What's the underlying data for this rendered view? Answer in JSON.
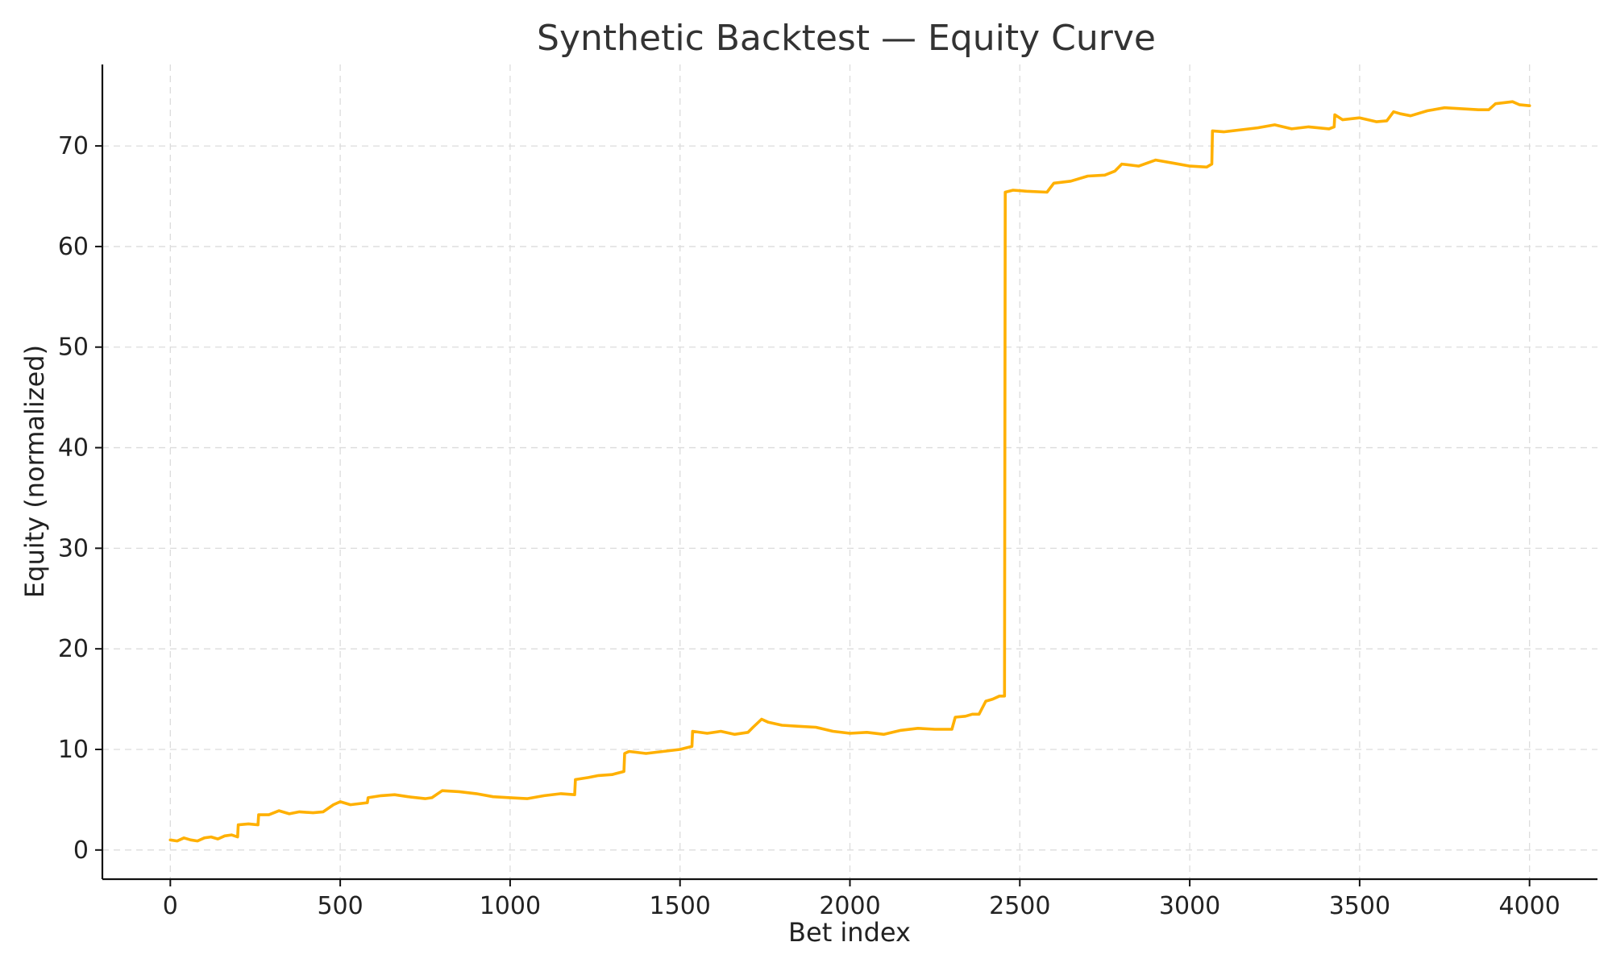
{
  "chart_data": {
    "type": "line",
    "title": "Synthetic Backtest — Equity Curve",
    "xlabel": "Bet index",
    "ylabel": "Equity (normalized)",
    "xlim": [
      -200,
      4200
    ],
    "ylim": [
      -2.9,
      78.1
    ],
    "xticks": [
      0,
      500,
      1000,
      1500,
      2000,
      2500,
      3000,
      3500,
      4000
    ],
    "yticks": [
      0,
      10,
      20,
      30,
      40,
      50,
      60,
      70
    ],
    "grid": true,
    "series": [
      {
        "color": "#FFB000",
        "x": [
          0,
          20,
          40,
          60,
          80,
          100,
          120,
          140,
          160,
          180,
          198,
          200,
          230,
          258,
          260,
          290,
          320,
          350,
          380,
          420,
          450,
          480,
          500,
          530,
          580,
          582,
          620,
          660,
          700,
          750,
          770,
          800,
          850,
          900,
          950,
          1000,
          1050,
          1100,
          1150,
          1190,
          1192,
          1230,
          1260,
          1300,
          1335,
          1337,
          1350,
          1400,
          1450,
          1500,
          1535,
          1537,
          1580,
          1620,
          1660,
          1700,
          1715,
          1740,
          1760,
          1800,
          1850,
          1900,
          1950,
          2000,
          2050,
          2100,
          2150,
          2200,
          2250,
          2300,
          2310,
          2340,
          2360,
          2380,
          2400,
          2420,
          2440,
          2455,
          2457,
          2480,
          2520,
          2580,
          2600,
          2650,
          2700,
          2750,
          2780,
          2800,
          2850,
          2900,
          2950,
          3000,
          3050,
          3065,
          3067,
          3100,
          3150,
          3200,
          3250,
          3300,
          3350,
          3410,
          3425,
          3427,
          3450,
          3500,
          3550,
          3580,
          3600,
          3620,
          3650,
          3700,
          3750,
          3800,
          3850,
          3880,
          3900,
          3950,
          3970,
          4000
        ],
        "y": [
          1.0,
          0.9,
          1.2,
          1.0,
          0.9,
          1.2,
          1.3,
          1.1,
          1.4,
          1.5,
          1.3,
          2.5,
          2.6,
          2.5,
          3.5,
          3.5,
          3.9,
          3.6,
          3.8,
          3.7,
          3.8,
          4.5,
          4.8,
          4.5,
          4.7,
          5.2,
          5.4,
          5.5,
          5.3,
          5.1,
          5.2,
          5.9,
          5.8,
          5.6,
          5.3,
          5.2,
          5.1,
          5.4,
          5.6,
          5.5,
          7.0,
          7.2,
          7.4,
          7.5,
          7.8,
          9.6,
          9.8,
          9.6,
          9.8,
          10.0,
          10.3,
          11.8,
          11.6,
          11.8,
          11.5,
          11.7,
          12.2,
          13.0,
          12.7,
          12.4,
          12.3,
          12.2,
          11.8,
          11.6,
          11.7,
          11.5,
          11.9,
          12.1,
          12.0,
          12.0,
          13.2,
          13.3,
          13.5,
          13.5,
          14.8,
          15.0,
          15.3,
          15.3,
          65.4,
          65.6,
          65.5,
          65.4,
          66.3,
          66.5,
          67.0,
          67.1,
          67.5,
          68.2,
          68.0,
          68.6,
          68.3,
          68.0,
          67.9,
          68.2,
          71.5,
          71.4,
          71.6,
          71.8,
          72.1,
          71.7,
          71.9,
          71.7,
          71.9,
          73.1,
          72.6,
          72.8,
          72.4,
          72.5,
          73.4,
          73.2,
          73.0,
          73.5,
          73.8,
          73.7,
          73.6,
          73.6,
          74.2,
          74.4,
          74.1,
          74.0
        ]
      }
    ]
  }
}
